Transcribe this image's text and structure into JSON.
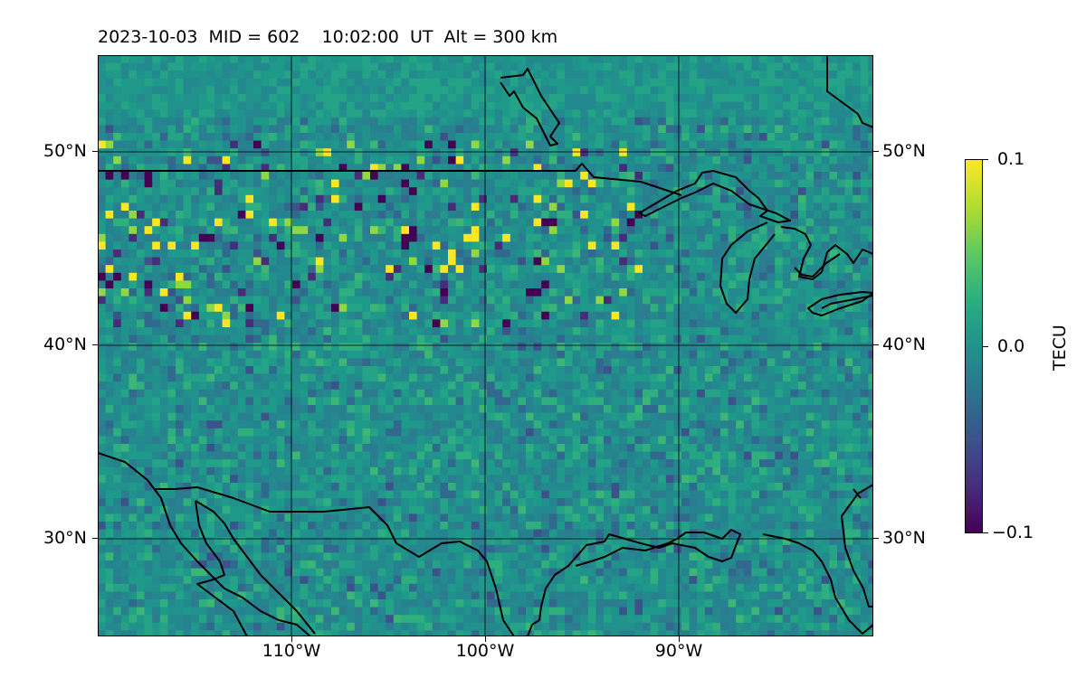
{
  "title": "2023-10-03  MID = 602    10:02:00  UT  Alt = 300 km",
  "axes": {
    "lat_ticks": [
      "50°N",
      "40°N",
      "30°N"
    ],
    "lon_ticks": [
      "110°W",
      "100°W",
      "90°W"
    ]
  },
  "colorbar": {
    "label": "TECU",
    "ticks": [
      "0.1",
      "0.0",
      "−0.1"
    ],
    "min": -0.1,
    "max": 0.1,
    "colormap": "viridis"
  },
  "map": {
    "lon_range": [
      -120,
      -80
    ],
    "lat_range": [
      25,
      55
    ],
    "grid": true,
    "features": [
      "coastlines",
      "us-canada-border",
      "us-mexico-border",
      "great-lakes"
    ]
  },
  "colors": {
    "background": "#2a8a8b",
    "gridline": "#000000",
    "coastline": "#000000"
  }
}
